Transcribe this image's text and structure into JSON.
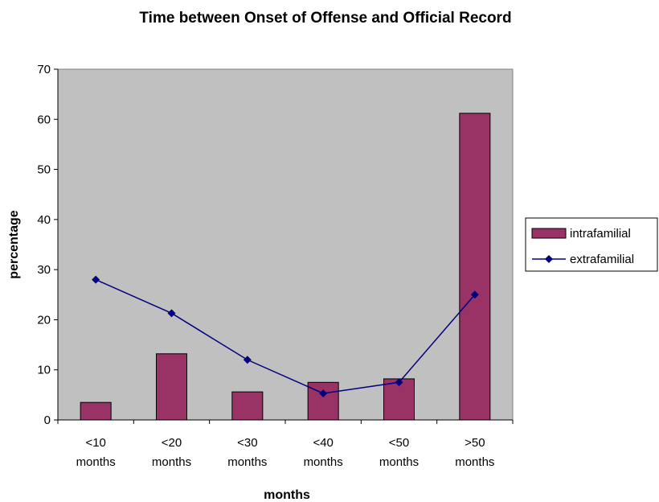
{
  "chart_data": {
    "type": "bar",
    "title": "Time between Onset of Offense and Official Record",
    "xlabel": "months",
    "ylabel": "percentage",
    "ylim": [
      0,
      70
    ],
    "yticks": [
      0,
      10,
      20,
      30,
      40,
      50,
      60,
      70
    ],
    "grid": false,
    "legend_position": "right",
    "categories": [
      [
        "<10",
        "months"
      ],
      [
        "<20",
        "months"
      ],
      [
        "<30",
        "months"
      ],
      [
        "<40",
        "months"
      ],
      [
        "<50",
        "months"
      ],
      [
        ">50",
        "months"
      ]
    ],
    "series": [
      {
        "name": "intrafamilial",
        "kind": "bar",
        "color": "#993366",
        "values": [
          3.5,
          13.2,
          5.6,
          7.5,
          8.2,
          61.2
        ]
      },
      {
        "name": "extrafamilial",
        "kind": "line",
        "color": "#000080",
        "values": [
          28.0,
          21.3,
          12.0,
          5.3,
          7.5,
          25.0
        ]
      }
    ],
    "plot_background": "#c0c0c0"
  }
}
